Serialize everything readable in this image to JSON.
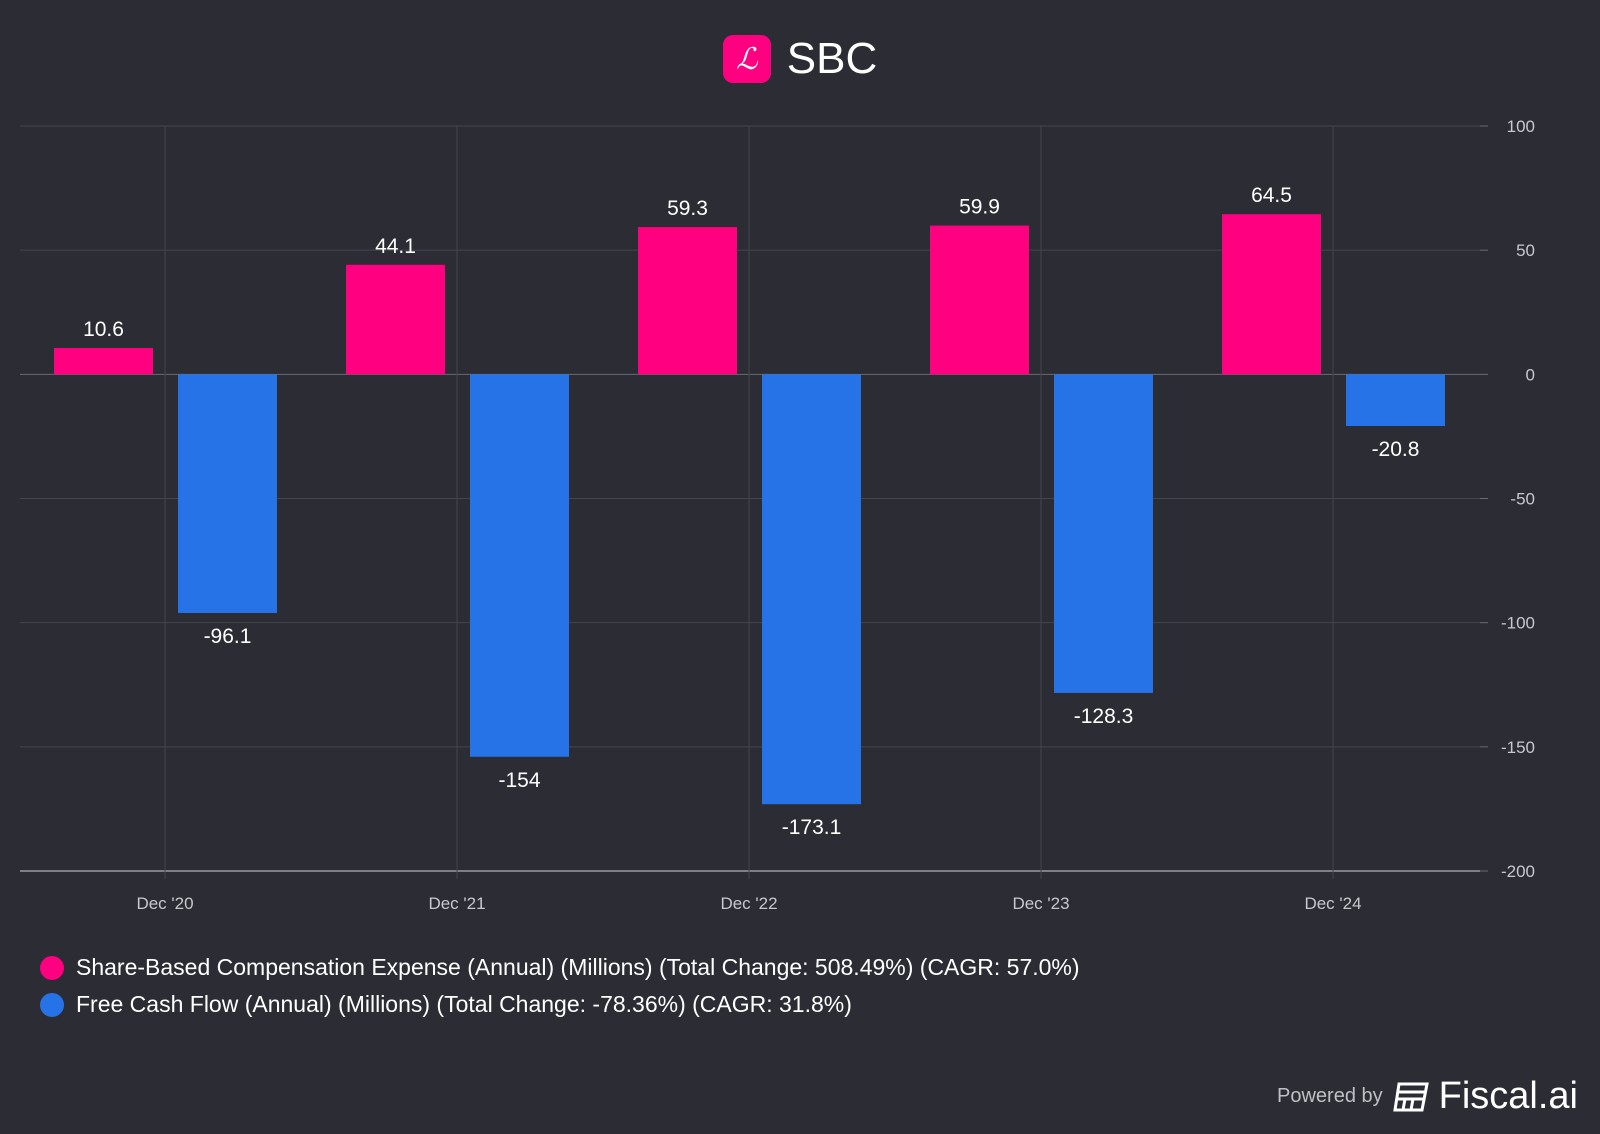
{
  "chart_data": {
    "type": "bar",
    "title": "SBC",
    "logo_letter": "L",
    "categories": [
      "Dec '20",
      "Dec '21",
      "Dec '22",
      "Dec '23",
      "Dec '24"
    ],
    "series": [
      {
        "name": "Share-Based Compensation Expense (Annual) (Millions) (Total Change: 508.49%) (CAGR: 57.0%)",
        "color": "#ff0080",
        "values": [
          10.6,
          44.1,
          59.3,
          59.9,
          64.5
        ],
        "labels": [
          "10.6",
          "44.1",
          "59.3",
          "59.9",
          "64.5"
        ]
      },
      {
        "name": "Free Cash Flow (Annual) (Millions) (Total Change: -78.36%) (CAGR: 31.8%)",
        "color": "#2673e8",
        "values": [
          -96.1,
          -154,
          -173.1,
          -128.3,
          -20.8
        ],
        "labels": [
          "-96.1",
          "-154",
          "-173.1",
          "-128.3",
          "-20.8"
        ]
      }
    ],
    "ylim": [
      -200,
      100
    ],
    "yticks": [
      100,
      50,
      0,
      -50,
      -100,
      -150,
      -200
    ],
    "ytick_labels": [
      "100",
      "50",
      "0",
      "-50",
      "-100",
      "-150",
      "-200"
    ],
    "grid": true,
    "legend_position": "bottom-left"
  },
  "footer": {
    "powered_by": "Powered by",
    "brand": "Fiscal.ai"
  }
}
